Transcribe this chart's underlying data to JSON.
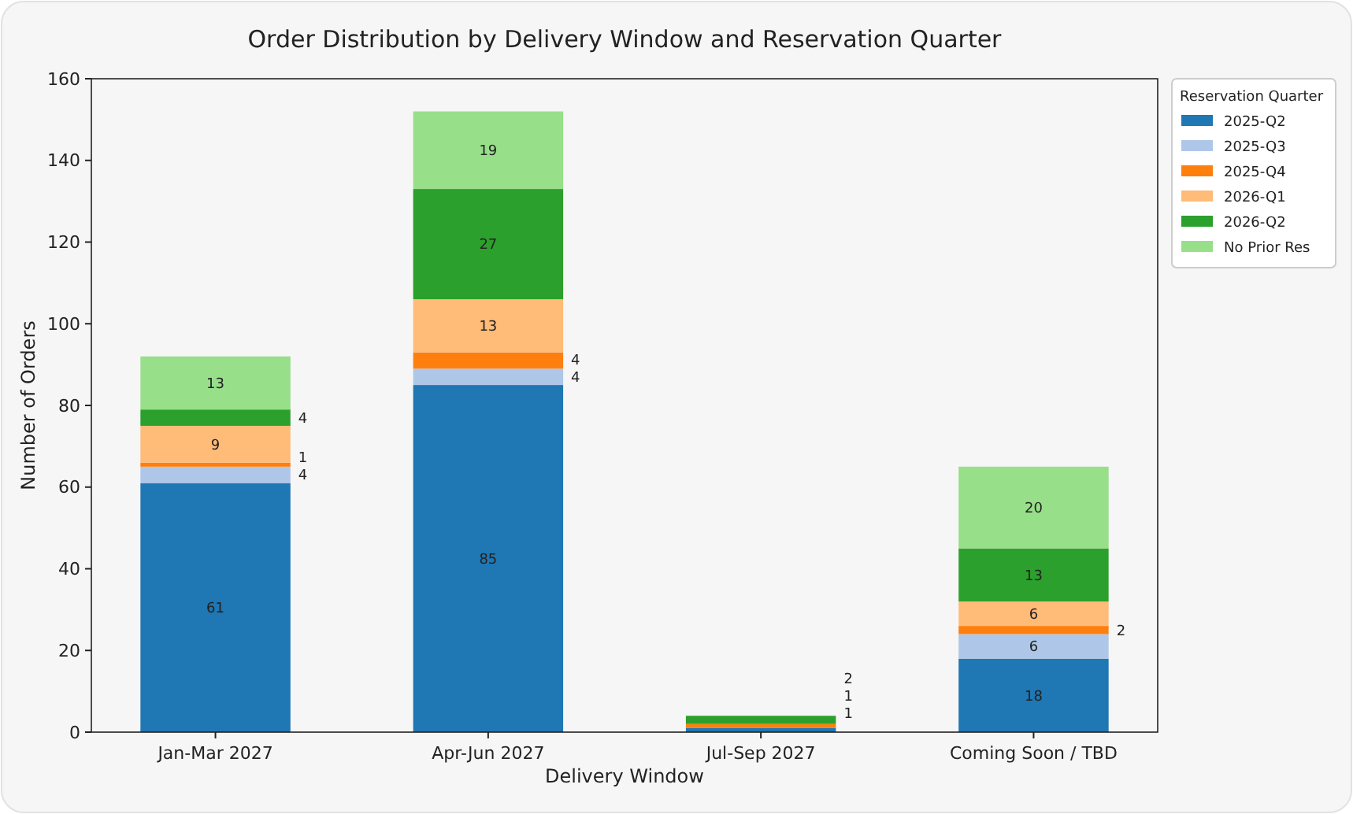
{
  "chart_data": {
    "type": "bar",
    "title": "Order Distribution by Delivery Window and Reservation Quarter",
    "xlabel": "Delivery Window",
    "ylabel": "Number of Orders",
    "legend_title": "Reservation Quarter",
    "categories": [
      "Jan-Mar 2027",
      "Apr-Jun 2027",
      "Jul-Sep 2027",
      "Coming Soon / TBD"
    ],
    "stacked": true,
    "ylim": [
      0,
      160
    ],
    "yticks": [
      0,
      20,
      40,
      60,
      80,
      100,
      120,
      140,
      160
    ],
    "grid": false,
    "legend": "top right",
    "series": [
      {
        "name": "2025-Q2",
        "color": "#1f77b4",
        "values": [
          61,
          85,
          1,
          18
        ],
        "value_labels": [
          "61",
          "85",
          "1",
          "18"
        ]
      },
      {
        "name": "2025-Q3",
        "color": "#aec7e8",
        "values": [
          4,
          4,
          0,
          6
        ],
        "value_labels": [
          "4",
          "4",
          null,
          "6"
        ]
      },
      {
        "name": "2025-Q4",
        "color": "#ff7f0e",
        "values": [
          1,
          4,
          1,
          2
        ],
        "value_labels": [
          "1",
          "4",
          "1",
          "2"
        ]
      },
      {
        "name": "2026-Q1",
        "color": "#ffbb78",
        "values": [
          9,
          13,
          0,
          6
        ],
        "value_labels": [
          "9",
          "13",
          null,
          "6"
        ]
      },
      {
        "name": "2026-Q2",
        "color": "#2ca02c",
        "values": [
          4,
          27,
          2,
          13
        ],
        "value_labels": [
          "4",
          "27",
          "2",
          "13"
        ]
      },
      {
        "name": "No Prior Res",
        "color": "#98df8a",
        "values": [
          13,
          19,
          0,
          20
        ],
        "value_labels": [
          "13",
          "19",
          null,
          "20"
        ]
      }
    ]
  }
}
